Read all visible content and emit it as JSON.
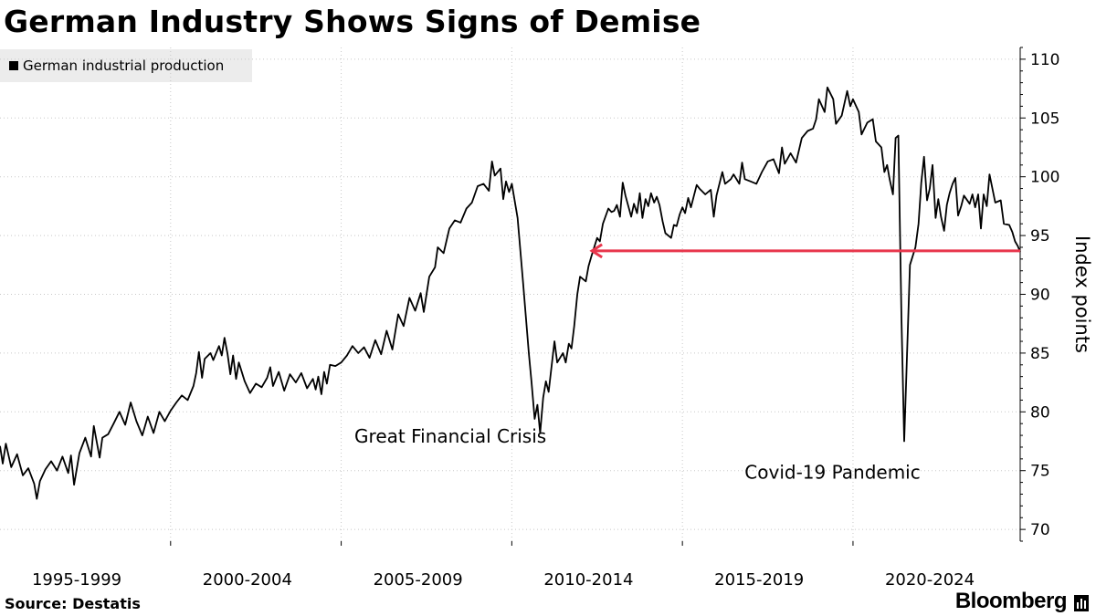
{
  "title": "German Industry Shows Signs of Demise",
  "legend": {
    "label": "German industrial production",
    "color": "#000000"
  },
  "footer": {
    "source": "Source: Destatis",
    "brand": "Bloomberg"
  },
  "chart_data": {
    "type": "line",
    "title": "German Industry Shows Signs of Demise",
    "ylabel": "Index points",
    "xlabel": "",
    "ylim": [
      69,
      111
    ],
    "xlim": [
      1995.0,
      2024.9
    ],
    "yticks": [
      70,
      75,
      80,
      85,
      90,
      95,
      100,
      105,
      110
    ],
    "period_labels": [
      {
        "label": "1995-1999",
        "center": 1997.25
      },
      {
        "label": "2000-2004",
        "center": 2002.25
      },
      {
        "label": "2005-2009",
        "center": 2007.25
      },
      {
        "label": "2010-2014",
        "center": 2012.25
      },
      {
        "label": "2015-2019",
        "center": 2017.25
      },
      {
        "label": "2020-2024",
        "center": 2022.25
      }
    ],
    "period_dividers": [
      2000.0,
      2005.0,
      2010.0,
      2015.0,
      2020.0
    ],
    "grid": true,
    "series": [
      {
        "name": "German industrial production",
        "color": "#000000",
        "points": [
          [
            1995.0,
            77.1
          ],
          [
            1995.08,
            75.6
          ],
          [
            1995.17,
            77.3
          ],
          [
            1995.33,
            75.3
          ],
          [
            1995.5,
            76.4
          ],
          [
            1995.67,
            74.6
          ],
          [
            1995.83,
            75.2
          ],
          [
            1996.0,
            73.9
          ],
          [
            1996.08,
            72.6
          ],
          [
            1996.17,
            74.1
          ],
          [
            1996.33,
            75.1
          ],
          [
            1996.5,
            75.8
          ],
          [
            1996.67,
            75.0
          ],
          [
            1996.83,
            76.2
          ],
          [
            1997.0,
            74.8
          ],
          [
            1997.08,
            76.3
          ],
          [
            1997.17,
            73.8
          ],
          [
            1997.33,
            76.5
          ],
          [
            1997.5,
            77.8
          ],
          [
            1997.67,
            76.2
          ],
          [
            1997.75,
            78.8
          ],
          [
            1997.92,
            76.1
          ],
          [
            1998.0,
            77.8
          ],
          [
            1998.17,
            78.1
          ],
          [
            1998.33,
            79.0
          ],
          [
            1998.5,
            80.0
          ],
          [
            1998.67,
            78.9
          ],
          [
            1998.83,
            80.8
          ],
          [
            1999.0,
            79.2
          ],
          [
            1999.17,
            78.0
          ],
          [
            1999.33,
            79.6
          ],
          [
            1999.5,
            78.2
          ],
          [
            1999.67,
            80.0
          ],
          [
            1999.83,
            79.2
          ],
          [
            2000.0,
            80.1
          ],
          [
            2000.17,
            80.8
          ],
          [
            2000.33,
            81.4
          ],
          [
            2000.5,
            81.0
          ],
          [
            2000.67,
            82.2
          ],
          [
            2000.75,
            83.3
          ],
          [
            2000.83,
            85.1
          ],
          [
            2000.92,
            82.9
          ],
          [
            2001.0,
            84.5
          ],
          [
            2001.17,
            85.0
          ],
          [
            2001.25,
            84.4
          ],
          [
            2001.42,
            85.6
          ],
          [
            2001.5,
            84.8
          ],
          [
            2001.58,
            86.3
          ],
          [
            2001.67,
            84.9
          ],
          [
            2001.75,
            83.2
          ],
          [
            2001.83,
            84.8
          ],
          [
            2001.92,
            82.8
          ],
          [
            2002.0,
            84.2
          ],
          [
            2002.17,
            82.6
          ],
          [
            2002.33,
            81.6
          ],
          [
            2002.5,
            82.4
          ],
          [
            2002.67,
            82.1
          ],
          [
            2002.83,
            82.9
          ],
          [
            2002.92,
            83.8
          ],
          [
            2003.0,
            82.2
          ],
          [
            2003.17,
            83.4
          ],
          [
            2003.33,
            81.8
          ],
          [
            2003.5,
            83.2
          ],
          [
            2003.67,
            82.5
          ],
          [
            2003.83,
            83.3
          ],
          [
            2004.0,
            82.0
          ],
          [
            2004.17,
            82.8
          ],
          [
            2004.25,
            81.9
          ],
          [
            2004.33,
            83.0
          ],
          [
            2004.42,
            81.5
          ],
          [
            2004.5,
            83.4
          ],
          [
            2004.58,
            82.4
          ],
          [
            2004.67,
            84.0
          ],
          [
            2004.83,
            83.9
          ],
          [
            2005.0,
            84.2
          ],
          [
            2005.17,
            84.8
          ],
          [
            2005.33,
            85.6
          ],
          [
            2005.5,
            85.0
          ],
          [
            2005.67,
            85.5
          ],
          [
            2005.83,
            84.6
          ],
          [
            2006.0,
            86.1
          ],
          [
            2006.17,
            84.9
          ],
          [
            2006.33,
            86.9
          ],
          [
            2006.5,
            85.3
          ],
          [
            2006.67,
            88.3
          ],
          [
            2006.83,
            87.3
          ],
          [
            2007.0,
            89.7
          ],
          [
            2007.17,
            88.6
          ],
          [
            2007.33,
            90.1
          ],
          [
            2007.42,
            88.5
          ],
          [
            2007.58,
            91.5
          ],
          [
            2007.75,
            92.3
          ],
          [
            2007.83,
            94.0
          ],
          [
            2008.0,
            93.5
          ],
          [
            2008.17,
            95.6
          ],
          [
            2008.33,
            96.3
          ],
          [
            2008.5,
            96.1
          ],
          [
            2008.67,
            97.3
          ],
          [
            2008.83,
            97.8
          ],
          [
            2009.0,
            99.2
          ],
          [
            2009.17,
            99.4
          ],
          [
            2009.33,
            98.8
          ],
          [
            2009.42,
            101.3
          ],
          [
            2009.5,
            100.1
          ],
          [
            2009.67,
            100.7
          ],
          [
            2009.75,
            98.1
          ],
          [
            2009.83,
            99.6
          ],
          [
            2009.92,
            98.7
          ],
          [
            2010.0,
            99.4
          ],
          [
            2010.17,
            96.5
          ],
          [
            2010.33,
            91.0
          ],
          [
            2010.5,
            85.0
          ],
          [
            2010.58,
            82.5
          ],
          [
            2010.67,
            79.4
          ],
          [
            2010.75,
            80.6
          ],
          [
            2010.83,
            78.2
          ],
          [
            2010.92,
            81.2
          ],
          [
            2011.0,
            82.6
          ],
          [
            2011.08,
            81.7
          ],
          [
            2011.17,
            84.0
          ],
          [
            2011.25,
            86.0
          ],
          [
            2011.33,
            84.2
          ],
          [
            2011.5,
            85.0
          ],
          [
            2011.58,
            84.2
          ],
          [
            2011.67,
            85.8
          ],
          [
            2011.75,
            85.4
          ],
          [
            2011.83,
            87.3
          ],
          [
            2011.92,
            90.0
          ],
          [
            2012.0,
            91.5
          ],
          [
            2012.17,
            91.1
          ],
          [
            2012.25,
            92.4
          ],
          [
            2012.33,
            93.2
          ],
          [
            2012.5,
            94.8
          ],
          [
            2012.58,
            94.5
          ],
          [
            2012.67,
            96.0
          ],
          [
            2012.83,
            97.3
          ],
          [
            2012.92,
            97.0
          ],
          [
            2013.0,
            97.1
          ],
          [
            2013.08,
            97.6
          ],
          [
            2013.17,
            96.6
          ],
          [
            2013.25,
            99.5
          ],
          [
            2013.33,
            98.4
          ],
          [
            2013.5,
            96.6
          ],
          [
            2013.58,
            97.7
          ],
          [
            2013.67,
            96.9
          ],
          [
            2013.75,
            98.6
          ],
          [
            2013.83,
            96.5
          ],
          [
            2013.92,
            98.1
          ],
          [
            2014.0,
            97.5
          ],
          [
            2014.08,
            98.6
          ],
          [
            2014.17,
            97.8
          ],
          [
            2014.25,
            98.3
          ],
          [
            2014.33,
            97.6
          ],
          [
            2014.42,
            96.2
          ],
          [
            2014.5,
            95.2
          ],
          [
            2014.67,
            94.8
          ],
          [
            2014.75,
            95.9
          ],
          [
            2014.83,
            95.8
          ],
          [
            2014.92,
            96.8
          ],
          [
            2015.0,
            97.4
          ],
          [
            2015.08,
            96.9
          ],
          [
            2015.17,
            98.2
          ],
          [
            2015.25,
            97.4
          ],
          [
            2015.42,
            99.3
          ],
          [
            2015.5,
            99.0
          ],
          [
            2015.67,
            98.5
          ],
          [
            2015.83,
            98.9
          ],
          [
            2015.92,
            96.6
          ],
          [
            2016.0,
            98.4
          ],
          [
            2016.17,
            100.4
          ],
          [
            2016.25,
            99.4
          ],
          [
            2016.42,
            99.8
          ],
          [
            2016.5,
            100.2
          ],
          [
            2016.67,
            99.4
          ],
          [
            2016.75,
            101.2
          ],
          [
            2016.83,
            99.8
          ],
          [
            2017.0,
            99.6
          ],
          [
            2017.17,
            99.4
          ],
          [
            2017.33,
            100.4
          ],
          [
            2017.5,
            101.3
          ],
          [
            2017.67,
            101.5
          ],
          [
            2017.83,
            100.3
          ],
          [
            2017.92,
            102.5
          ],
          [
            2018.0,
            101.1
          ],
          [
            2018.17,
            102.0
          ],
          [
            2018.33,
            101.2
          ],
          [
            2018.5,
            103.3
          ],
          [
            2018.67,
            103.9
          ],
          [
            2018.83,
            104.1
          ],
          [
            2018.92,
            104.9
          ],
          [
            2019.0,
            106.6
          ],
          [
            2019.17,
            105.5
          ],
          [
            2019.25,
            107.6
          ],
          [
            2019.42,
            106.6
          ],
          [
            2019.5,
            104.5
          ],
          [
            2019.67,
            105.2
          ],
          [
            2019.83,
            107.3
          ],
          [
            2019.92,
            106.0
          ],
          [
            2020.0,
            106.6
          ],
          [
            2020.17,
            105.5
          ],
          [
            2020.25,
            103.6
          ],
          [
            2020.42,
            104.6
          ],
          [
            2020.58,
            104.9
          ],
          [
            2020.67,
            103.0
          ],
          [
            2020.83,
            102.5
          ],
          [
            2020.92,
            100.4
          ],
          [
            2021.0,
            101.0
          ],
          [
            2021.08,
            99.7
          ],
          [
            2021.17,
            98.5
          ],
          [
            2021.25,
            103.3
          ],
          [
            2021.33,
            103.5
          ],
          [
            2021.42,
            88.0
          ],
          [
            2021.5,
            77.5
          ],
          [
            2021.67,
            92.5
          ],
          [
            2021.83,
            94.0
          ],
          [
            2021.92,
            96.0
          ],
          [
            2022.0,
            99.5
          ],
          [
            2022.08,
            101.7
          ],
          [
            2022.17,
            98.0
          ],
          [
            2022.25,
            99.0
          ],
          [
            2022.33,
            101.0
          ],
          [
            2022.42,
            96.5
          ],
          [
            2022.5,
            98.1
          ],
          [
            2022.58,
            96.6
          ],
          [
            2022.67,
            95.4
          ],
          [
            2022.75,
            97.6
          ],
          [
            2022.83,
            98.6
          ],
          [
            2022.92,
            99.4
          ],
          [
            2023.0,
            99.9
          ],
          [
            2023.08,
            96.7
          ],
          [
            2023.17,
            97.5
          ],
          [
            2023.25,
            98.4
          ],
          [
            2023.42,
            97.7
          ],
          [
            2023.5,
            98.5
          ],
          [
            2023.58,
            97.4
          ],
          [
            2023.67,
            98.5
          ],
          [
            2023.75,
            95.6
          ],
          [
            2023.83,
            98.5
          ],
          [
            2023.92,
            97.5
          ],
          [
            2024.0,
            100.2
          ],
          [
            2024.17,
            97.8
          ],
          [
            2024.33,
            98.0
          ],
          [
            2024.42,
            96.0
          ],
          [
            2024.58,
            95.9
          ],
          [
            2024.67,
            95.3
          ],
          [
            2024.75,
            94.5
          ],
          [
            2024.83,
            94.1
          ],
          [
            2024.9,
            93.6
          ]
        ]
      }
    ],
    "reference_arrow": {
      "from_x": 2024.9,
      "to_x": 2012.35,
      "y": 93.7,
      "color": "#e8364c"
    },
    "annotations": [
      {
        "text": "Great Financial Crisis",
        "x": 2008.2,
        "y": 77.4
      },
      {
        "text": "Covid-19 Pandemic",
        "x": 2019.4,
        "y": 74.3
      }
    ]
  }
}
